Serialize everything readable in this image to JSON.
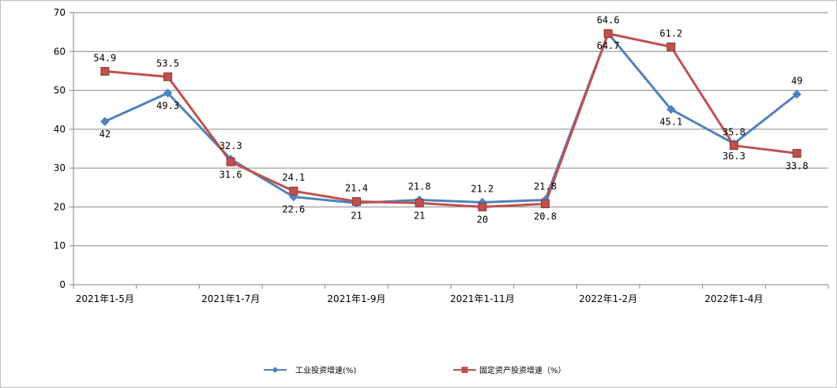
{
  "chart_data": {
    "type": "line",
    "title": "",
    "xlabel": "",
    "ylabel": "",
    "ylim": [
      0,
      70
    ],
    "y_ticks": [
      0,
      10,
      20,
      30,
      40,
      50,
      60,
      70
    ],
    "grid": true,
    "legend_position": "bottom",
    "x_tick_labels": [
      "2021年1-5月",
      "2021年1-7月",
      "2021年1-9月",
      "2021年1-11月",
      "2022年1-2月",
      "2022年1-4月"
    ],
    "series": [
      {
        "name": "工业投资增速(%)",
        "color": "#4F81BD",
        "marker": "diamond",
        "values": [
          42,
          49.3,
          32.3,
          22.6,
          21,
          21.8,
          21.2,
          21.8,
          64.7,
          45.1,
          36.3,
          49
        ],
        "labels": [
          "42",
          "49.3",
          "32.3",
          "22.6",
          "21",
          "21.8",
          "21.2",
          "21.8",
          "64.7",
          "45.1",
          "36.3",
          "49"
        ]
      },
      {
        "name": "固定资产投资增速（%）",
        "color": "#C0504D",
        "marker": "square",
        "values": [
          54.9,
          53.5,
          31.6,
          24.1,
          21.4,
          21,
          20,
          20.8,
          64.6,
          61.2,
          35.8,
          33.8
        ],
        "labels": [
          "54.9",
          "53.5",
          "31.6",
          "24.1",
          "21.4",
          "21",
          "20",
          "20.8",
          "64.6",
          "61.2",
          "35.8",
          "33.8"
        ]
      }
    ]
  }
}
